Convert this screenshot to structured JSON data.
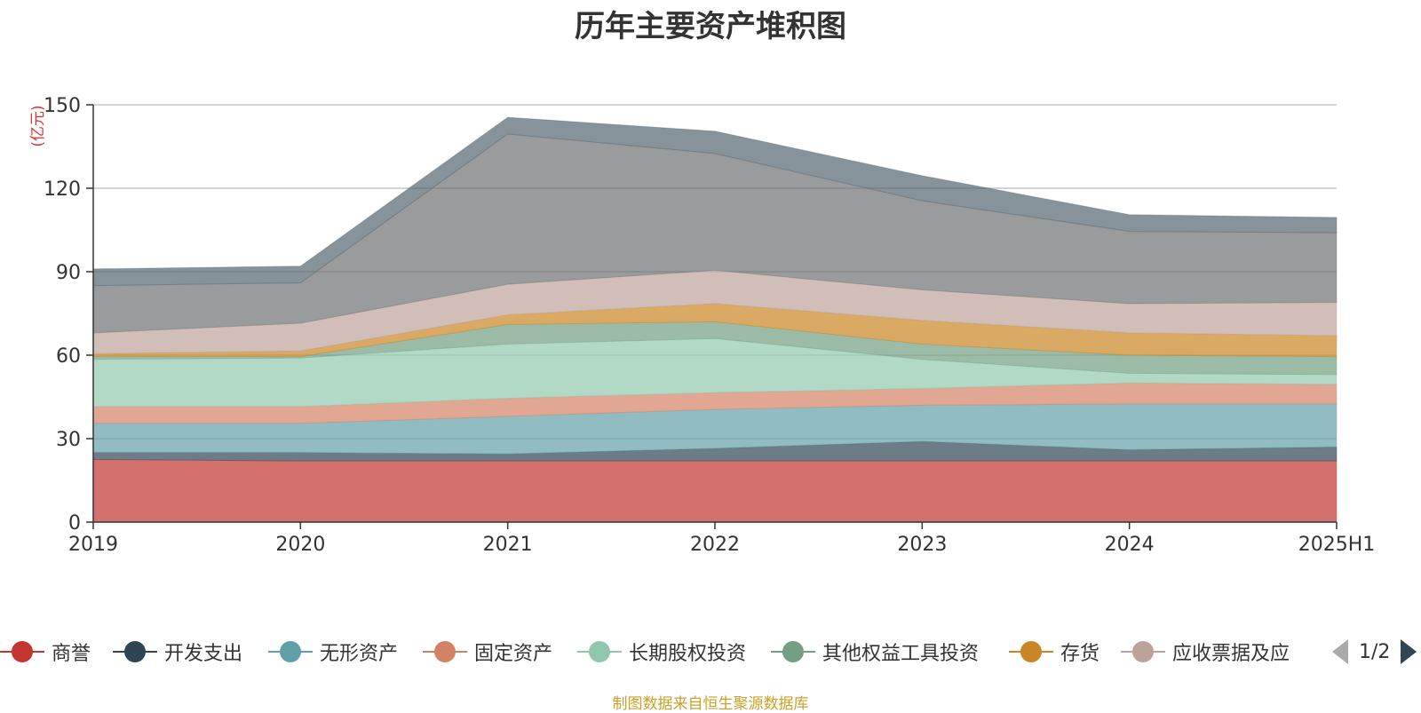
{
  "chart_data": {
    "type": "area",
    "stacked": true,
    "title": "历年主要资产堆积图",
    "ylabel": "(亿元)",
    "ylim": [
      0,
      150
    ],
    "yticks": [
      0,
      30,
      60,
      90,
      120,
      150
    ],
    "grid": true,
    "categories": [
      "2019",
      "2020",
      "2021",
      "2022",
      "2023",
      "2024",
      "2025H1"
    ],
    "series": [
      {
        "name": "商誉",
        "color": "#c23531",
        "values": [
          22.5,
          22,
          22,
          22,
          22,
          22,
          22
        ]
      },
      {
        "name": "开发支出",
        "color": "#2f4554",
        "values": [
          2.5,
          3,
          2.5,
          4.5,
          7,
          4,
          5
        ]
      },
      {
        "name": "无形资产",
        "color": "#61a0a8",
        "values": [
          10.5,
          10.5,
          13.5,
          14,
          13,
          16.5,
          15.5
        ]
      },
      {
        "name": "固定资产",
        "color": "#d48265",
        "values": [
          6,
          6,
          6.5,
          6,
          6,
          7.5,
          7
        ]
      },
      {
        "name": "长期股权投资",
        "color": "#91c7ae",
        "values": [
          17,
          17.5,
          19.5,
          19.5,
          10.5,
          3.5,
          3.5
        ]
      },
      {
        "name": "其他权益工具投资",
        "color": "#749f83",
        "values": [
          1,
          0.5,
          7,
          6,
          5.5,
          6.5,
          6.5
        ]
      },
      {
        "name": "存货",
        "color": "#ca8622",
        "values": [
          1,
          2,
          3.5,
          6.5,
          8.5,
          8,
          7.5
        ]
      },
      {
        "name": "应收票据及应收账款",
        "color": "#bda29a",
        "values": [
          7.5,
          10,
          11,
          12,
          11,
          10.5,
          12
        ]
      },
      {
        "name": "",
        "color": "#6e7074",
        "values": [
          17,
          14.5,
          54,
          42,
          32,
          26,
          25
        ]
      },
      {
        "name": "",
        "color": "#546570",
        "values": [
          6,
          6,
          6,
          8,
          9,
          6,
          5.5
        ]
      }
    ]
  },
  "legend": {
    "items": [
      {
        "label": "商誉",
        "color": "#c23531"
      },
      {
        "label": "开发支出",
        "color": "#2f4554"
      },
      {
        "label": "无形资产",
        "color": "#61a0a8"
      },
      {
        "label": "固定资产",
        "color": "#d48265"
      },
      {
        "label": "长期股权投资",
        "color": "#91c7ae"
      },
      {
        "label": "其他权益工具投资",
        "color": "#749f83"
      },
      {
        "label": "存货",
        "color": "#ca8622"
      },
      {
        "label": "应收票据及应",
        "color": "#bda29a"
      }
    ],
    "page_text": "1/2"
  },
  "footer": "制图数据来自恒生聚源数据库"
}
